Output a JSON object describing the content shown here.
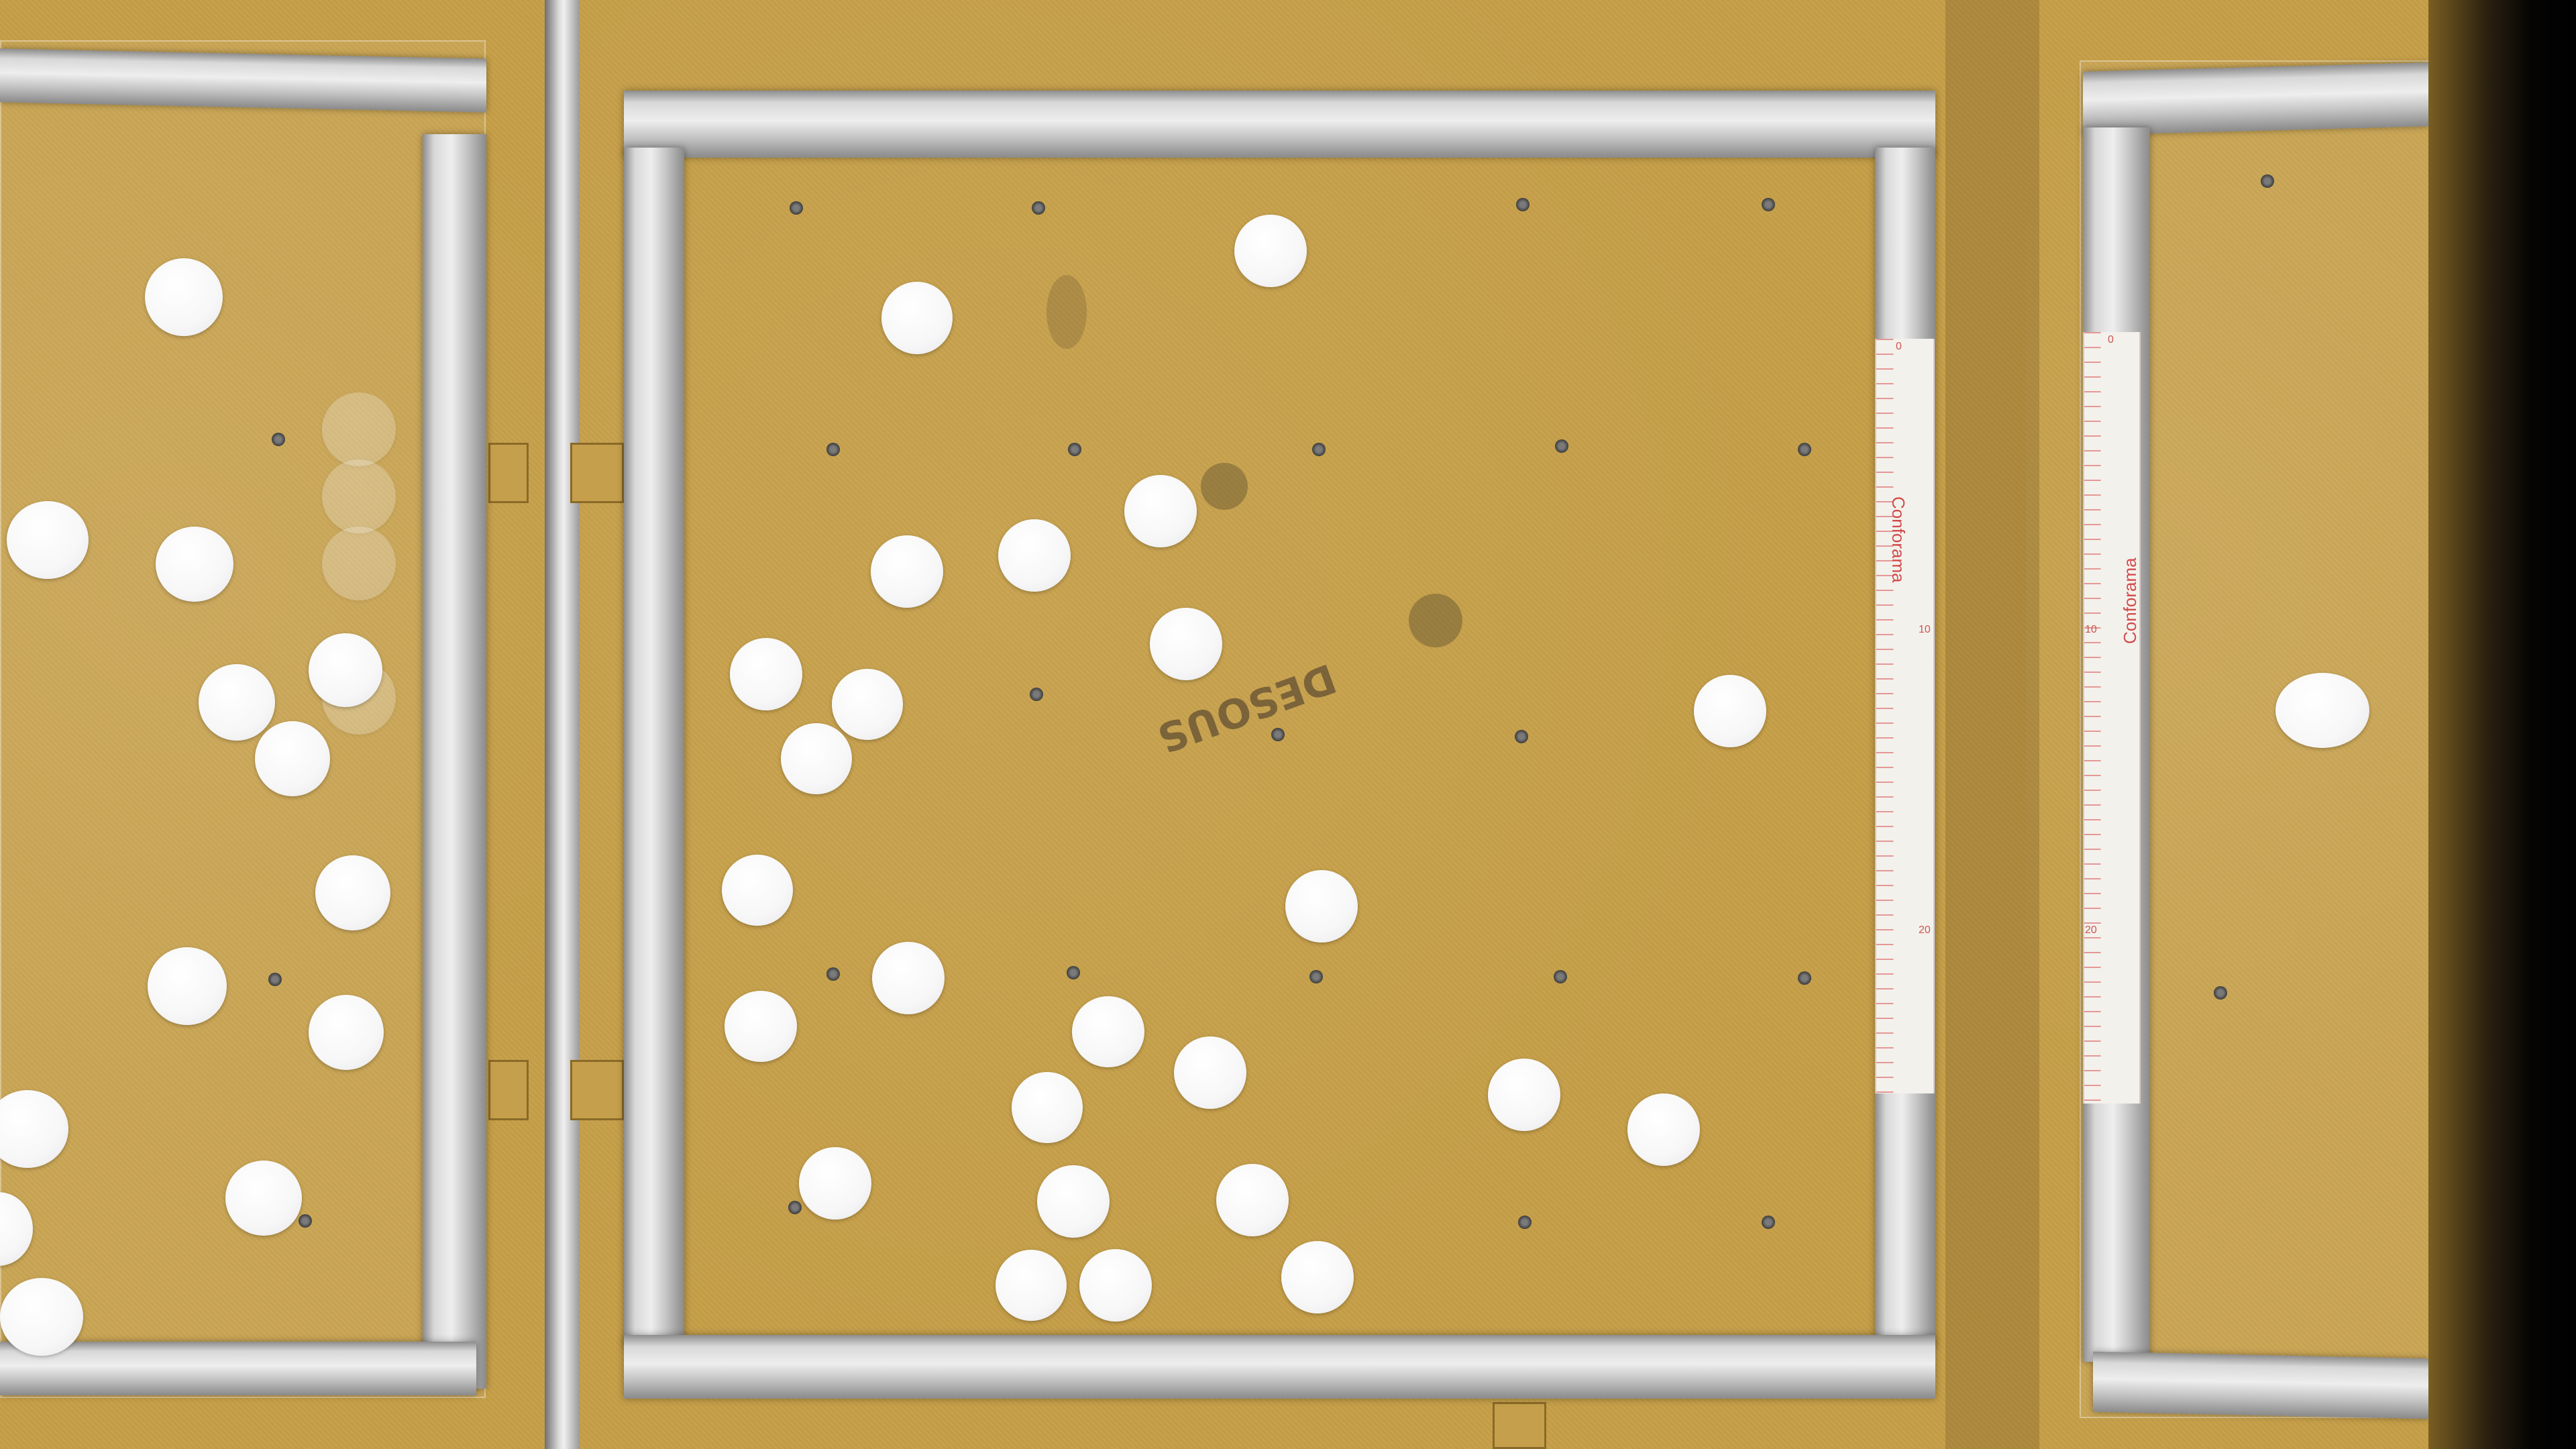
{
  "scene": {
    "description_labels": {
      "ruler_brand": "Conforama"
    },
    "colors": {
      "cork": "#c69f48",
      "aluminum": "#d8d8d8",
      "disk": "#f7f7f8",
      "ruler_marks": "#d24a4a"
    },
    "ruler_numbers": [
      "0",
      "10",
      "20"
    ]
  }
}
